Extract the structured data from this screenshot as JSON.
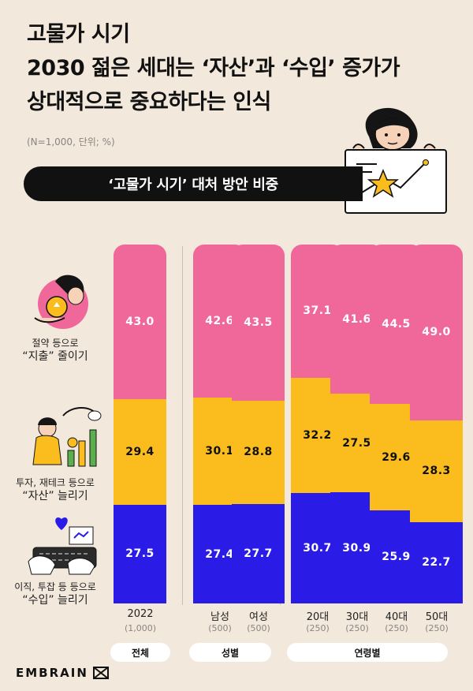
{
  "header": {
    "title_lines": [
      "고물가 시기",
      "2030 젊은 세대는 ‘자산’과 ‘수입’ 증가가",
      "상대적으로 중요하다는 인식"
    ],
    "note": "(N=1,000, 단위; %)",
    "banner": "‘고물가 시기’ 대처 방안 비중"
  },
  "legend": [
    {
      "line1": "절약 등으로",
      "line2": "“지출” 줄이기"
    },
    {
      "line1": "투자, 재테크 등으로",
      "line2": "“자산” 늘리기"
    },
    {
      "line1": "이직, 투잡 등 등으로",
      "line2": "“수입” 늘리기"
    }
  ],
  "groups": [
    {
      "label": "전체"
    },
    {
      "label": "성별"
    },
    {
      "label": "연령별"
    }
  ],
  "colors": {
    "spending": "#f0689a",
    "assets": "#fbbd1d",
    "income": "#2a1ce6"
  },
  "chart_data": {
    "type": "bar",
    "stacked": true,
    "categories": [
      "2022",
      "남성",
      "여성",
      "20대",
      "30대",
      "40대",
      "50대"
    ],
    "sample_sizes": [
      "(1,000)",
      "(500)",
      "(500)",
      "(250)",
      "(250)",
      "(250)",
      "(250)"
    ],
    "series": [
      {
        "key": "income",
        "values": [
          27.5,
          27.4,
          27.7,
          30.7,
          30.9,
          25.9,
          22.7
        ]
      },
      {
        "key": "assets",
        "values": [
          29.4,
          30.1,
          28.8,
          32.2,
          27.5,
          29.6,
          28.3
        ]
      },
      {
        "key": "spending",
        "values": [
          43.0,
          42.6,
          43.5,
          37.1,
          41.6,
          44.5,
          49.0
        ]
      }
    ],
    "value_labels": [
      [
        "27.5",
        "27.4",
        "27.7",
        "30.7",
        "30.9",
        "25.9",
        "22.7"
      ],
      [
        "29.4",
        "30.1",
        "28.8",
        "32.2",
        "27.5",
        "29.6",
        "28.3"
      ],
      [
        "43.0",
        "42.6",
        "43.5",
        "37.1",
        "41.6",
        "44.5",
        "49.0"
      ]
    ],
    "ylim": [
      0,
      100
    ]
  },
  "brand": {
    "name": "EMBRAIN"
  }
}
